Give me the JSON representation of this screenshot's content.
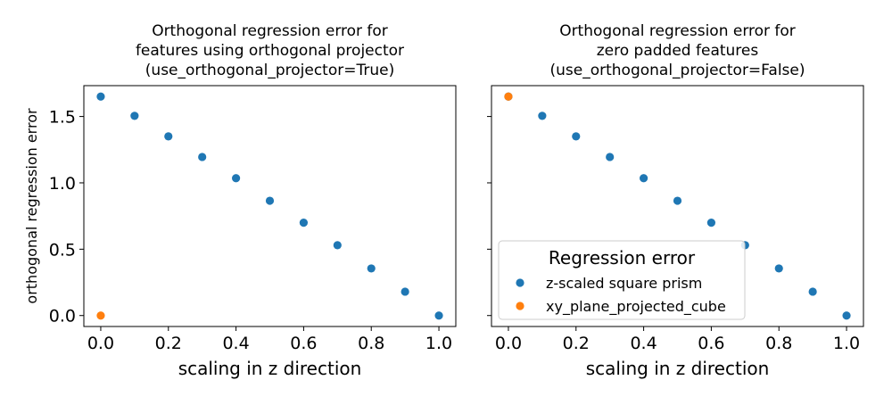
{
  "chart_data": [
    {
      "type": "scatter",
      "title": [
        "Orthogonal regression error for",
        "features using orthogonal projector",
        "(use_orthogonal_projector=True)"
      ],
      "xlabel": "scaling in z direction",
      "ylabel": "orthogonal regression error",
      "xlim": [
        -0.05,
        1.05
      ],
      "ylim": [
        -0.0825,
        1.7325
      ],
      "xticks": [
        0.0,
        0.2,
        0.4,
        0.6,
        0.8,
        1.0
      ],
      "xtick_labels": [
        "0.0",
        "0.2",
        "0.4",
        "0.6",
        "0.8",
        "1.0"
      ],
      "yticks": [
        0.0,
        0.5,
        1.0,
        1.5
      ],
      "ytick_labels": [
        "0.0",
        "0.5",
        "1.0",
        "1.5"
      ],
      "show_yticklabels": true,
      "grid": false,
      "series": [
        {
          "color": "#1f77b4",
          "x": [
            0.0,
            0.1,
            0.2,
            0.3,
            0.4,
            0.5,
            0.6,
            0.7,
            0.8,
            0.9,
            1.0
          ],
          "y": [
            1.65,
            1.505,
            1.35,
            1.195,
            1.035,
            0.865,
            0.7,
            0.53,
            0.355,
            0.18,
            0.0
          ]
        },
        {
          "color": "#ff7f0e",
          "x": [
            0.0
          ],
          "y": [
            0.0
          ]
        }
      ]
    },
    {
      "type": "scatter",
      "title": [
        "Orthogonal regression error for",
        "zero padded features",
        "(use_orthogonal_projector=False)"
      ],
      "xlabel": "scaling in z direction",
      "ylabel": "",
      "xlim": [
        -0.05,
        1.05
      ],
      "ylim": [
        -0.0825,
        1.7325
      ],
      "xticks": [
        0.0,
        0.2,
        0.4,
        0.6,
        0.8,
        1.0
      ],
      "xtick_labels": [
        "0.0",
        "0.2",
        "0.4",
        "0.6",
        "0.8",
        "1.0"
      ],
      "yticks": [
        0.0,
        0.5,
        1.0,
        1.5
      ],
      "ytick_labels": [],
      "show_yticklabels": false,
      "grid": false,
      "legend": {
        "title": "Regression error",
        "placement": "lower-left",
        "entries": [
          "z-scaled square prism",
          "xy_plane_projected_cube"
        ]
      },
      "series": [
        {
          "name": "z-scaled square prism",
          "color": "#1f77b4",
          "x": [
            0.0,
            0.1,
            0.2,
            0.3,
            0.4,
            0.5,
            0.6,
            0.7,
            0.8,
            0.9,
            1.0
          ],
          "y": [
            1.65,
            1.505,
            1.35,
            1.195,
            1.035,
            0.865,
            0.7,
            0.53,
            0.355,
            0.18,
            0.0
          ]
        },
        {
          "name": "xy_plane_projected_cube",
          "color": "#ff7f0e",
          "x": [
            0.0
          ],
          "y": [
            1.65
          ]
        }
      ]
    }
  ]
}
